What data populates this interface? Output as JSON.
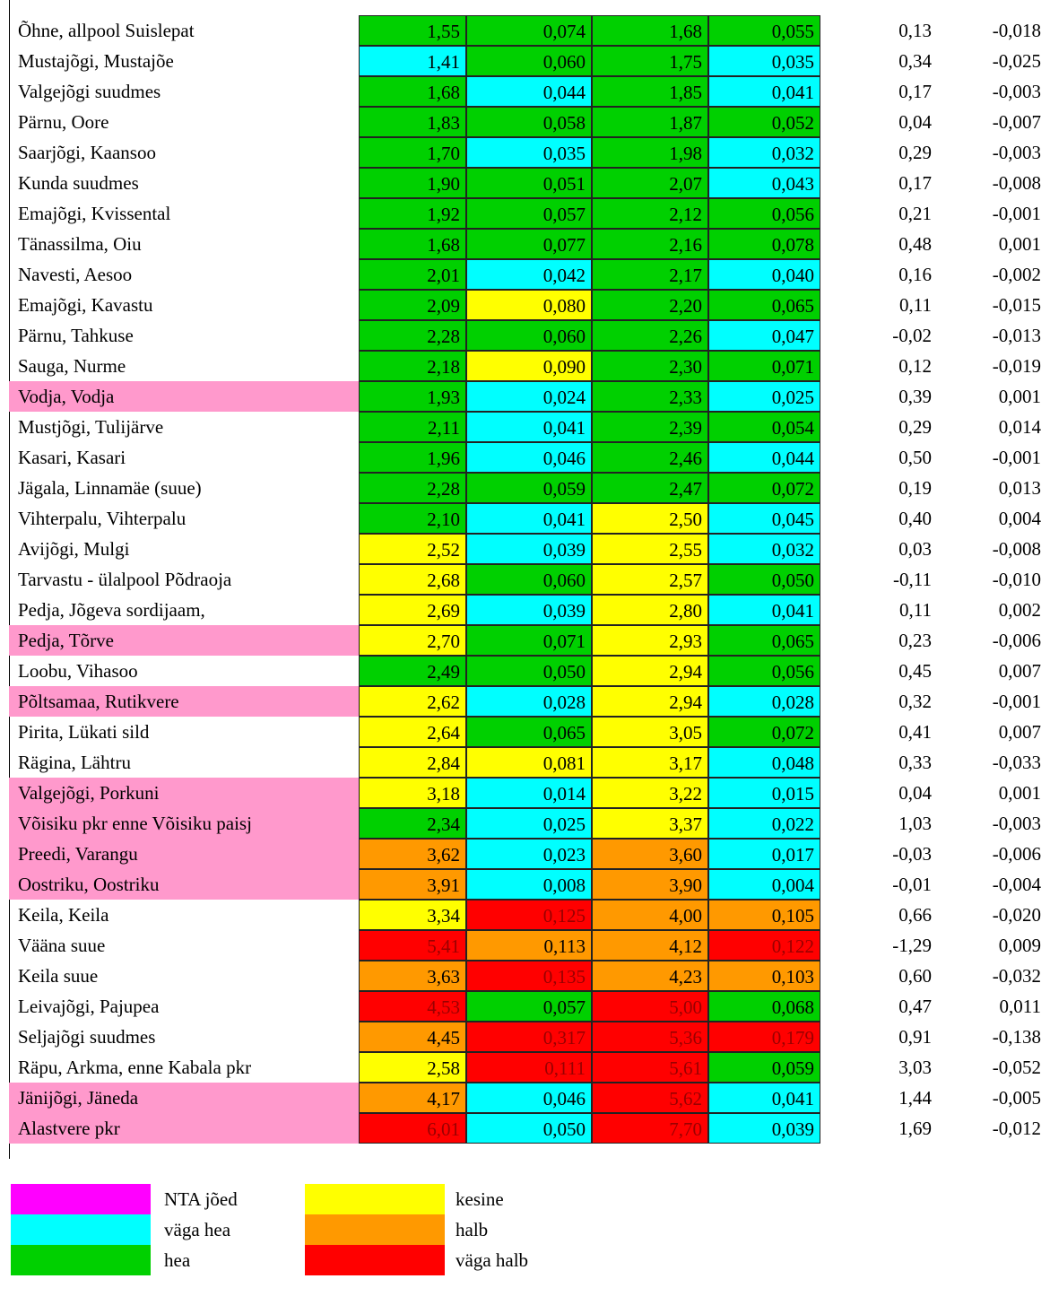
{
  "highlight_color": "#ff99cc",
  "legend": [
    {
      "label": "NTA jõed",
      "color": "#ff00ff"
    },
    {
      "label": "väga hea",
      "color": "#00ffff"
    },
    {
      "label": "hea",
      "color": "#00d000"
    },
    {
      "label": "kesine",
      "color": "#ffff00"
    },
    {
      "label": "halb",
      "color": "#ff9900"
    },
    {
      "label": "väga halb",
      "color": "#ff0000"
    }
  ],
  "table": {
    "rows": [
      {
        "name": "Õhne, allpool Suislepat",
        "nta": false,
        "cells": [
          "1,55",
          "0,074",
          "1,68",
          "0,055",
          "0,13",
          "-0,018"
        ],
        "classes": [
          2,
          2,
          2,
          2
        ]
      },
      {
        "name": "Mustajõgi, Mustajõe",
        "nta": false,
        "cells": [
          "1,41",
          "0,060",
          "1,75",
          "0,035",
          "0,34",
          "-0,025"
        ],
        "classes": [
          1,
          2,
          2,
          1
        ]
      },
      {
        "name": "Valgejõgi suudmes",
        "nta": false,
        "cells": [
          "1,68",
          "0,044",
          "1,85",
          "0,041",
          "0,17",
          "-0,003"
        ],
        "classes": [
          2,
          1,
          2,
          1
        ]
      },
      {
        "name": "Pärnu, Oore",
        "nta": false,
        "cells": [
          "1,83",
          "0,058",
          "1,87",
          "0,052",
          "0,04",
          "-0,007"
        ],
        "classes": [
          2,
          2,
          2,
          2
        ]
      },
      {
        "name": "Saarjõgi, Kaansoo",
        "nta": false,
        "cells": [
          "1,70",
          "0,035",
          "1,98",
          "0,032",
          "0,29",
          "-0,003"
        ],
        "classes": [
          2,
          1,
          2,
          1
        ]
      },
      {
        "name": "Kunda suudmes",
        "nta": false,
        "cells": [
          "1,90",
          "0,051",
          "2,07",
          "0,043",
          "0,17",
          "-0,008"
        ],
        "classes": [
          2,
          2,
          2,
          1
        ]
      },
      {
        "name": "Emajõgi, Kvissental",
        "nta": false,
        "cells": [
          "1,92",
          "0,057",
          "2,12",
          "0,056",
          "0,21",
          "-0,001"
        ],
        "classes": [
          2,
          2,
          2,
          2
        ]
      },
      {
        "name": "Tänassilma, Oiu",
        "nta": false,
        "cells": [
          "1,68",
          "0,077",
          "2,16",
          "0,078",
          "0,48",
          "0,001"
        ],
        "classes": [
          2,
          2,
          2,
          2
        ]
      },
      {
        "name": "Navesti, Aesoo",
        "nta": false,
        "cells": [
          "2,01",
          "0,042",
          "2,17",
          "0,040",
          "0,16",
          "-0,002"
        ],
        "classes": [
          2,
          1,
          2,
          1
        ]
      },
      {
        "name": "Emajõgi, Kavastu",
        "nta": false,
        "cells": [
          "2,09",
          "0,080",
          "2,20",
          "0,065",
          "0,11",
          "-0,015"
        ],
        "classes": [
          2,
          3,
          2,
          2
        ]
      },
      {
        "name": "Pärnu, Tahkuse",
        "nta": false,
        "cells": [
          "2,28",
          "0,060",
          "2,26",
          "0,047",
          "-0,02",
          "-0,013"
        ],
        "classes": [
          2,
          2,
          2,
          1
        ]
      },
      {
        "name": "Sauga, Nurme",
        "nta": false,
        "cells": [
          "2,18",
          "0,090",
          "2,30",
          "0,071",
          "0,12",
          "-0,019"
        ],
        "classes": [
          2,
          3,
          2,
          2
        ]
      },
      {
        "name": "Vodja, Vodja",
        "nta": true,
        "cells": [
          "1,93",
          "0,024",
          "2,33",
          "0,025",
          "0,39",
          "0,001"
        ],
        "classes": [
          2,
          1,
          2,
          1
        ]
      },
      {
        "name": "Mustjõgi, Tulijärve",
        "nta": false,
        "cells": [
          "2,11",
          "0,041",
          "2,39",
          "0,054",
          "0,29",
          "0,014"
        ],
        "classes": [
          2,
          1,
          2,
          2
        ]
      },
      {
        "name": "Kasari, Kasari",
        "nta": false,
        "cells": [
          "1,96",
          "0,046",
          "2,46",
          "0,044",
          "0,50",
          "-0,001"
        ],
        "classes": [
          2,
          1,
          2,
          1
        ]
      },
      {
        "name": "Jägala, Linnamäe (suue)",
        "nta": false,
        "cells": [
          "2,28",
          "0,059",
          "2,47",
          "0,072",
          "0,19",
          "0,013"
        ],
        "classes": [
          2,
          2,
          2,
          2
        ]
      },
      {
        "name": "Vihterpalu, Vihterpalu",
        "nta": false,
        "cells": [
          "2,10",
          "0,041",
          "2,50",
          "0,045",
          "0,40",
          "0,004"
        ],
        "classes": [
          2,
          1,
          3,
          1
        ]
      },
      {
        "name": "Avijõgi, Mulgi",
        "nta": false,
        "cells": [
          "2,52",
          "0,039",
          "2,55",
          "0,032",
          "0,03",
          "-0,008"
        ],
        "classes": [
          3,
          1,
          3,
          1
        ]
      },
      {
        "name": "Tarvastu - ülalpool Põdraoja",
        "nta": false,
        "cells": [
          "2,68",
          "0,060",
          "2,57",
          "0,050",
          "-0,11",
          "-0,010"
        ],
        "classes": [
          3,
          2,
          3,
          2
        ]
      },
      {
        "name": "Pedja, Jõgeva sordijaam,",
        "nta": false,
        "cells": [
          "2,69",
          "0,039",
          "2,80",
          "0,041",
          "0,11",
          "0,002"
        ],
        "classes": [
          3,
          1,
          3,
          1
        ]
      },
      {
        "name": "Pedja, Tõrve",
        "nta": true,
        "cells": [
          "2,70",
          "0,071",
          "2,93",
          "0,065",
          "0,23",
          "-0,006"
        ],
        "classes": [
          3,
          2,
          3,
          2
        ]
      },
      {
        "name": "Loobu, Vihasoo",
        "nta": false,
        "cells": [
          "2,49",
          "0,050",
          "2,94",
          "0,056",
          "0,45",
          "0,007"
        ],
        "classes": [
          2,
          2,
          3,
          2
        ]
      },
      {
        "name": "Põltsamaa, Rutikvere",
        "nta": true,
        "cells": [
          "2,62",
          "0,028",
          "2,94",
          "0,028",
          "0,32",
          "-0,001"
        ],
        "classes": [
          3,
          1,
          3,
          1
        ]
      },
      {
        "name": "Pirita, Lükati sild",
        "nta": false,
        "cells": [
          "2,64",
          "0,065",
          "3,05",
          "0,072",
          "0,41",
          "0,007"
        ],
        "classes": [
          3,
          2,
          3,
          2
        ]
      },
      {
        "name": "Rägina, Lähtru",
        "nta": false,
        "cells": [
          "2,84",
          "0,081",
          "3,17",
          "0,048",
          "0,33",
          "-0,033"
        ],
        "classes": [
          3,
          3,
          3,
          1
        ]
      },
      {
        "name": "Valgejõgi, Porkuni",
        "nta": true,
        "cells": [
          "3,18",
          "0,014",
          "3,22",
          "0,015",
          "0,04",
          "0,001"
        ],
        "classes": [
          3,
          1,
          3,
          1
        ]
      },
      {
        "name": "Võisiku pkr enne Võisiku paisj",
        "nta": true,
        "cells": [
          "2,34",
          "0,025",
          "3,37",
          "0,022",
          "1,03",
          "-0,003"
        ],
        "classes": [
          2,
          1,
          3,
          1
        ]
      },
      {
        "name": "Preedi, Varangu",
        "nta": true,
        "cells": [
          "3,62",
          "0,023",
          "3,60",
          "0,017",
          "-0,03",
          "-0,006"
        ],
        "classes": [
          4,
          1,
          4,
          1
        ]
      },
      {
        "name": "Oostriku, Oostriku",
        "nta": true,
        "cells": [
          "3,91",
          "0,008",
          "3,90",
          "0,004",
          "-0,01",
          "-0,004"
        ],
        "classes": [
          4,
          1,
          4,
          1
        ]
      },
      {
        "name": "Keila, Keila",
        "nta": false,
        "cells": [
          "3,34",
          "0,125",
          "4,00",
          "0,105",
          "0,66",
          "-0,020"
        ],
        "classes": [
          3,
          5,
          4,
          4
        ]
      },
      {
        "name": "Vääna suue",
        "nta": false,
        "cells": [
          "5,41",
          "0,113",
          "4,12",
          "0,122",
          "-1,29",
          "0,009"
        ],
        "classes": [
          5,
          4,
          4,
          5
        ]
      },
      {
        "name": "Keila suue",
        "nta": false,
        "cells": [
          "3,63",
          "0,135",
          "4,23",
          "0,103",
          "0,60",
          "-0,032"
        ],
        "classes": [
          4,
          5,
          4,
          4
        ]
      },
      {
        "name": "Leivajõgi, Pajupea",
        "nta": false,
        "cells": [
          "4,53",
          "0,057",
          "5,00",
          "0,068",
          "0,47",
          "0,011"
        ],
        "classes": [
          5,
          2,
          5,
          2
        ]
      },
      {
        "name": "Seljajõgi suudmes",
        "nta": false,
        "cells": [
          "4,45",
          "0,317",
          "5,36",
          "0,179",
          "0,91",
          "-0,138"
        ],
        "classes": [
          4,
          5,
          5,
          5
        ]
      },
      {
        "name": "Räpu, Arkma, enne Kabala pkr",
        "nta": false,
        "cells": [
          "2,58",
          "0,111",
          "5,61",
          "0,059",
          "3,03",
          "-0,052"
        ],
        "classes": [
          3,
          5,
          5,
          2
        ]
      },
      {
        "name": "Jänijõgi, Jäneda",
        "nta": true,
        "cells": [
          "4,17",
          "0,046",
          "5,62",
          "0,041",
          "1,44",
          "-0,005"
        ],
        "classes": [
          4,
          1,
          5,
          1
        ]
      },
      {
        "name": "Alastvere pkr",
        "nta": true,
        "cells": [
          "6,01",
          "0,050",
          "7,70",
          "0,039",
          "1,69",
          "-0,012"
        ],
        "classes": [
          5,
          1,
          5,
          1
        ]
      }
    ]
  }
}
